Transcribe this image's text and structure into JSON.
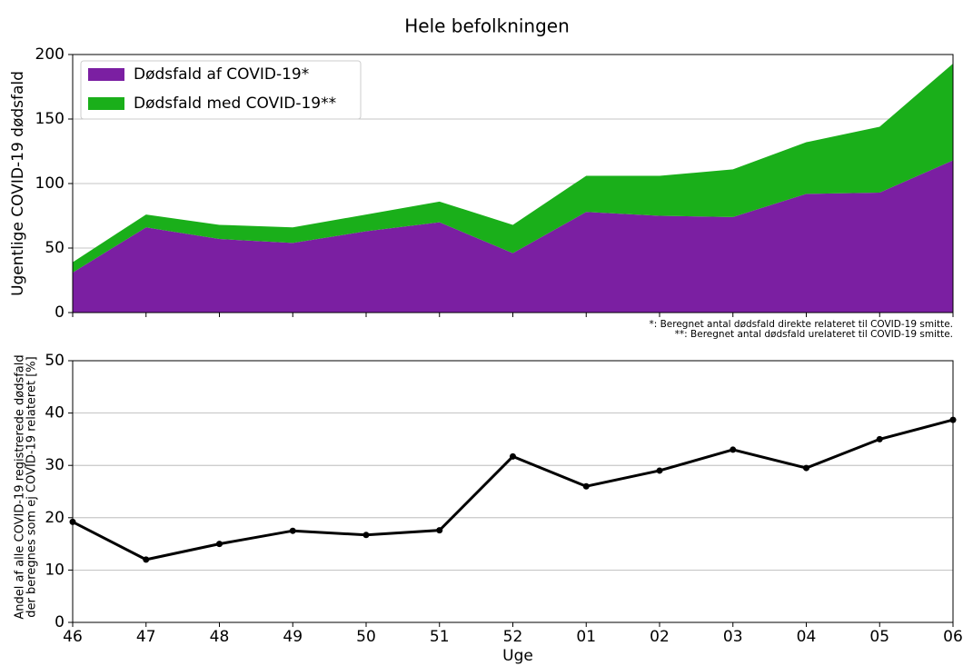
{
  "chart_data": [
    {
      "type": "stacked_area",
      "title": "Hele befolkningen",
      "ylabel": "Ugentlige COVID-19 dødsfald",
      "ylim": [
        0,
        200
      ],
      "yticks": [
        0,
        50,
        100,
        150,
        200
      ],
      "grid": true,
      "legend": "upper left",
      "annotations": [
        "*: Beregnet antal dødsfald direkte relateret til COVID-19 smitte.",
        "**: Beregnet antal dødsfald urelateret til COVID-19 smitte."
      ],
      "series": [
        {
          "name": "Dødsfald af COVID-19*",
          "color": "#7b1fa2",
          "values": [
            31,
            66,
            57,
            54,
            63,
            70,
            46,
            78,
            75,
            74,
            92,
            93,
            118
          ]
        },
        {
          "name": "Dødsfald med COVID-19**",
          "color": "#1aaf1a",
          "values": [
            8,
            10,
            11,
            12,
            13,
            16,
            22,
            28,
            31,
            37,
            40,
            51,
            75
          ]
        }
      ]
    },
    {
      "type": "line",
      "ylabel": [
        "Andel af alle COVID-19 registrerede dødsfald",
        "der beregnes som ej COVID-19 relateret [%]"
      ],
      "xlabel": "Uge",
      "categories": [
        "46",
        "47",
        "48",
        "49",
        "50",
        "51",
        "52",
        "01",
        "02",
        "03",
        "04",
        "05",
        "06"
      ],
      "ylim": [
        0,
        50
      ],
      "yticks": [
        0,
        10,
        20,
        30,
        40,
        50
      ],
      "grid": true,
      "color": "#000000",
      "values": [
        19.2,
        12,
        15,
        17.5,
        16.7,
        17.6,
        31.7,
        26,
        29,
        33,
        29.5,
        35,
        38.7
      ]
    }
  ]
}
